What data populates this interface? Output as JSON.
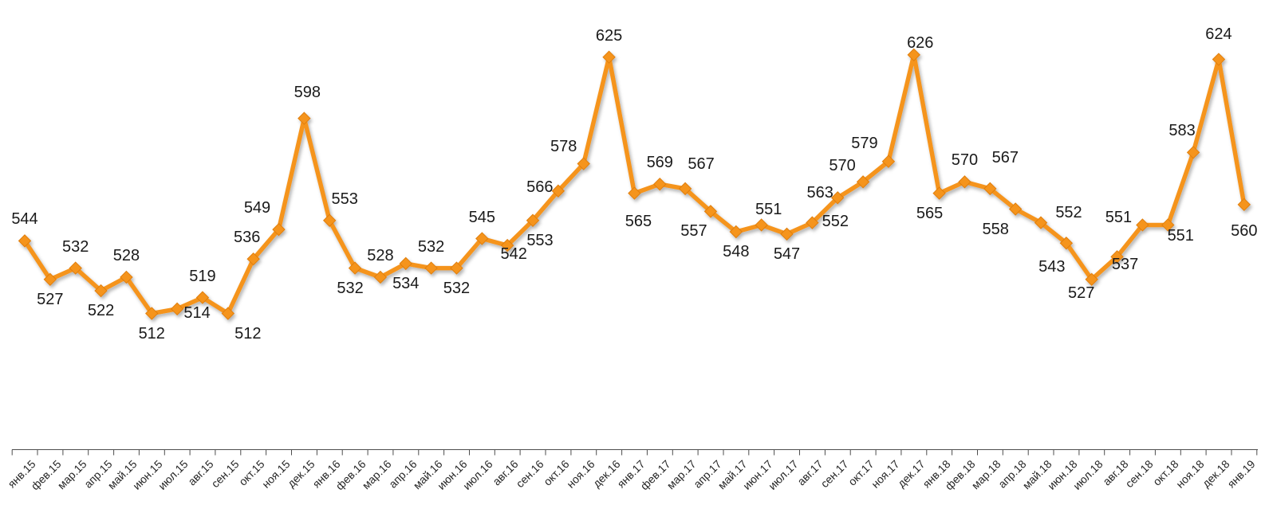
{
  "chart_data": {
    "type": "line",
    "title": "",
    "xlabel": "",
    "ylabel": "",
    "grid": false,
    "legend": false,
    "marker": "diamond",
    "x_labels": [
      "янв.15",
      "фев.15",
      "мар.15",
      "апр.15",
      "май.15",
      "июн.15",
      "июл.15",
      "авг.15",
      "сен.15",
      "окт.15",
      "ноя.15",
      "дек.15",
      "янв.16",
      "фев.16",
      "мар.16",
      "апр.16",
      "май.16",
      "июн.16",
      "июл.16",
      "авг.16",
      "сен.16",
      "окт.16",
      "ноя.16",
      "дек.16",
      "янв.17",
      "фев.17",
      "мар.17",
      "апр.17",
      "май.17",
      "июн.17",
      "июл.17",
      "авг.17",
      "сен.17",
      "окт.17",
      "ноя.17",
      "дек.17",
      "янв.18",
      "фев.18",
      "мар.18",
      "апр.18",
      "май.18",
      "июн.18",
      "июл.18",
      "авг.18",
      "сен.18",
      "окт.18",
      "ноя.18",
      "дек.18",
      "янв.19"
    ],
    "series": [
      {
        "name": "",
        "values": [
          544,
          527,
          532,
          522,
          528,
          512,
          514,
          519,
          512,
          536,
          549,
          598,
          553,
          532,
          528,
          534,
          532,
          532,
          545,
          542,
          553,
          566,
          578,
          625,
          565,
          569,
          567,
          557,
          548,
          551,
          547,
          552,
          563,
          570,
          579,
          626,
          565,
          570,
          567,
          558,
          552,
          543,
          527,
          537,
          551,
          551,
          583,
          624,
          560
        ]
      }
    ],
    "data_labels": {
      "show": true,
      "positions": [
        "above",
        "below",
        "above",
        "below",
        "above",
        "below",
        "below",
        "above",
        "below",
        "above",
        "above",
        "above",
        "above",
        "below",
        "above",
        "below",
        "above",
        "below",
        "above",
        "below",
        "below",
        "above",
        "above",
        "above",
        "below",
        "above",
        "above",
        "below",
        "below",
        "above",
        "below",
        "below",
        "above",
        "above",
        "above",
        "above",
        "below",
        "above",
        "above",
        "below",
        "above",
        "below",
        "below",
        "below",
        "above",
        "below",
        "above",
        "above",
        "below"
      ],
      "offsets": {
        "6": [
          25,
          -20
        ],
        "8": [
          25,
          0
        ],
        "9": [
          -8,
          0
        ],
        "10": [
          -27,
          0
        ],
        "11": [
          4,
          -6
        ],
        "12": [
          19,
          0
        ],
        "13": [
          -6,
          0
        ],
        "19": [
          8,
          -14
        ],
        "20": [
          9,
          0
        ],
        "21": [
          -23,
          22
        ],
        "22": [
          -25,
          5
        ],
        "24": [
          5,
          10
        ],
        "26": [
          20,
          -4
        ],
        "27": [
          -21,
          0
        ],
        "29": [
          9,
          8
        ],
        "31": [
          29,
          -27
        ],
        "32": [
          -22,
          21
        ],
        "33": [
          -26,
          7
        ],
        "34": [
          -30,
          4
        ],
        "35": [
          8,
          12
        ],
        "36": [
          -12,
          0
        ],
        "38": [
          19,
          -12
        ],
        "39": [
          -25,
          0
        ],
        "40": [
          35,
          14
        ],
        "41": [
          -18,
          5
        ],
        "42": [
          -13,
          -8
        ],
        "43": [
          10,
          -15
        ],
        "44": [
          -30,
          18
        ],
        "45": [
          16,
          -11
        ],
        "46": [
          -14,
          0
        ],
        "47": [
          0,
          -5
        ],
        "48": [
          0,
          8
        ]
      }
    },
    "value_range_shown": [
      512,
      626
    ],
    "xaxis": {
      "tick_style": "between-categories",
      "label_rotation_deg": -45
    }
  },
  "colors": {
    "line": "#F5941E",
    "marker_fill": "#F5941E",
    "marker_stroke": "#E07E0A",
    "data_label": "#1A1A1A",
    "axis": "#4D4D4D",
    "axis_label": "#262626",
    "background": "#FFFFFF"
  }
}
